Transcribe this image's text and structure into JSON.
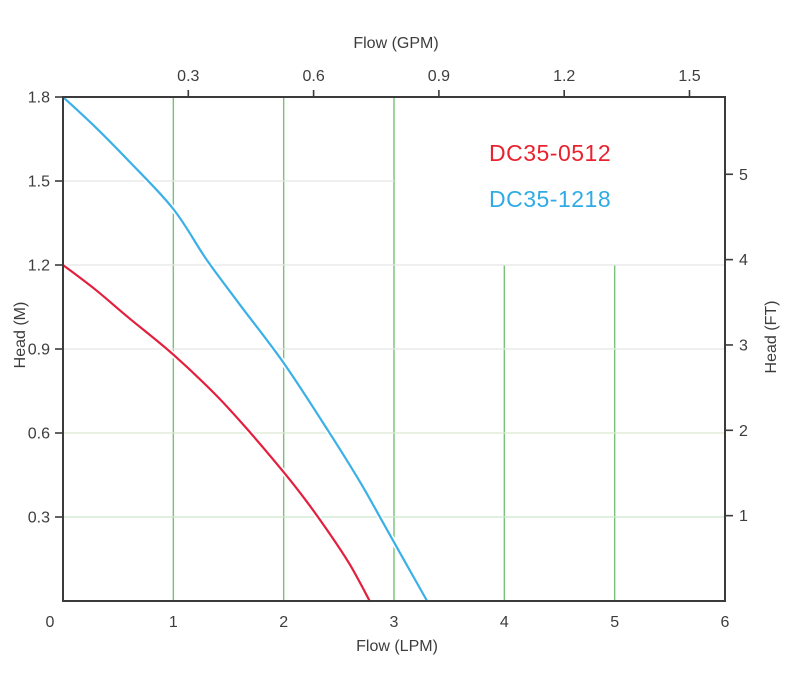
{
  "chart_data": {
    "type": "line",
    "title": "",
    "description": "Pump head vs flow performance curves",
    "grid_on": true,
    "legend_position": "upper-right-inside",
    "x_axes": {
      "bottom": {
        "label": "Flow (LPM)",
        "unit": "LPM",
        "range": [
          0,
          6
        ],
        "ticks": [
          {
            "v": 0,
            "t": "0",
            "dx": -13
          },
          {
            "v": 1,
            "t": "1"
          },
          {
            "v": 2,
            "t": "2"
          },
          {
            "v": 3,
            "t": "3"
          },
          {
            "v": 4,
            "t": "4"
          },
          {
            "v": 5,
            "t": "5"
          },
          {
            "v": 6,
            "t": "6"
          }
        ]
      },
      "top": {
        "label": "Flow (GPM)",
        "unit": "GPM",
        "lpm_per_unit": 3.78541,
        "ticks": [
          {
            "v": 0.3,
            "t": "0.3"
          },
          {
            "v": 0.6,
            "t": "0.6"
          },
          {
            "v": 0.9,
            "t": "0.9"
          },
          {
            "v": 1.2,
            "t": "1.2"
          },
          {
            "v": 1.5,
            "t": "1.5"
          }
        ]
      }
    },
    "y_axes": {
      "left": {
        "label": "Head (M)",
        "unit": "M",
        "range": [
          0,
          1.8
        ],
        "ticks": [
          {
            "v": 0.3,
            "t": "0.3"
          },
          {
            "v": 0.6,
            "t": "0.6"
          },
          {
            "v": 0.9,
            "t": "0.9"
          },
          {
            "v": 1.2,
            "t": "1.2"
          },
          {
            "v": 1.5,
            "t": "1.5"
          },
          {
            "v": 1.8,
            "t": "1.8"
          }
        ]
      },
      "right": {
        "label": "Head (FT)",
        "unit": "FT",
        "m_per_unit": 0.3048,
        "ticks": [
          {
            "v": 1,
            "t": "1"
          },
          {
            "v": 2,
            "t": "2"
          },
          {
            "v": 3,
            "t": "3"
          },
          {
            "v": 4,
            "t": "4"
          },
          {
            "v": 5,
            "t": "5"
          }
        ]
      }
    },
    "grid": {
      "vertical": [
        {
          "x": 1,
          "y_from": 0,
          "y_to": 1.8,
          "color": "#76c276"
        },
        {
          "x": 2,
          "y_from": 0,
          "y_to": 1.8,
          "color": "#76c276"
        },
        {
          "x": 3,
          "y_from": 0,
          "y_to": 1.8,
          "color": "#76c276"
        },
        {
          "x": 4,
          "y_from": 0,
          "y_to": 1.2,
          "color": "#76c276"
        },
        {
          "x": 5,
          "y_from": 0,
          "y_to": 1.2,
          "color": "#76c276"
        }
      ],
      "horizontal": [
        {
          "y": 1.5,
          "x_from": 0,
          "x_to": 3,
          "color": "#e5e5e5"
        },
        {
          "y": 1.2,
          "x_from": 0,
          "x_to": 6,
          "color": "#e5e5e5"
        },
        {
          "y": 0.9,
          "x_from": 0,
          "x_to": 6,
          "color": "#e2e6e2"
        },
        {
          "y": 0.6,
          "x_from": 0,
          "x_to": 6,
          "color": "#dcead0"
        },
        {
          "y": 0.3,
          "x_from": 0,
          "x_to": 6,
          "color": "#cde7cd"
        }
      ]
    },
    "series": [
      {
        "name": "DC35-0512",
        "color": "#e2203e",
        "points": [
          [
            0,
            1.2
          ],
          [
            0.3,
            1.11
          ],
          [
            0.6,
            1.01
          ],
          [
            1.0,
            0.88
          ],
          [
            1.4,
            0.73
          ],
          [
            1.7,
            0.6
          ],
          [
            2.0,
            0.46
          ],
          [
            2.2,
            0.36
          ],
          [
            2.4,
            0.25
          ],
          [
            2.6,
            0.13
          ],
          [
            2.78,
            0
          ]
        ]
      },
      {
        "name": "DC35-1218",
        "color": "#3bb0e8",
        "points": [
          [
            0,
            1.8
          ],
          [
            0.3,
            1.69
          ],
          [
            0.6,
            1.57
          ],
          [
            1.0,
            1.4
          ],
          [
            1.3,
            1.22
          ],
          [
            1.6,
            1.06
          ],
          [
            2.0,
            0.85
          ],
          [
            2.4,
            0.61
          ],
          [
            2.7,
            0.42
          ],
          [
            2.9,
            0.28
          ],
          [
            3.1,
            0.14
          ],
          [
            3.3,
            0
          ]
        ]
      }
    ],
    "colors": {
      "spine": "#3b3b3b",
      "tick_text": "#3d3d3d",
      "background": "#ffffff"
    }
  },
  "legend": {
    "items": [
      {
        "label": "DC35-0512",
        "color": "#e8222f"
      },
      {
        "label": "DC35-1218",
        "color": "#30abe5"
      }
    ]
  }
}
